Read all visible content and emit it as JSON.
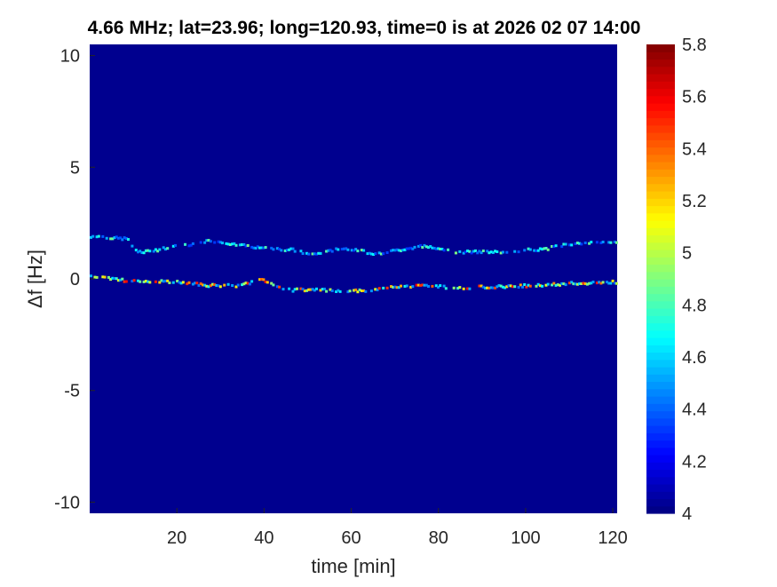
{
  "chart_data": {
    "type": "heatmap",
    "title": "4.66 MHz;  lat=23.96; long=120.93, time=0 is at 2026 02 07 14:00",
    "xlabel": "time [min]",
    "ylabel": "Δf [Hz]",
    "xlim": [
      0,
      121
    ],
    "ylim": [
      -10.5,
      10.5
    ],
    "xticks": [
      "20",
      "40",
      "60",
      "80",
      "100",
      "120"
    ],
    "yticks": [
      "10",
      "5",
      "0",
      "-5",
      "-10"
    ],
    "colorbar": {
      "colormap": "jet",
      "clim": [
        4,
        5.8
      ],
      "ticks": [
        "4",
        "4.2",
        "4.4",
        "4.6",
        "4.8",
        "5",
        "5.2",
        "5.4",
        "5.6",
        "5.8"
      ]
    },
    "background_value": 4,
    "background_color": "#00008f",
    "traces": [
      {
        "level_range": [
          4.3,
          4.9
        ],
        "points": [
          [
            0,
            1.9
          ],
          [
            8,
            1.8
          ],
          [
            11,
            1.2
          ],
          [
            22,
            1.5
          ],
          [
            27,
            1.7
          ],
          [
            34,
            1.5
          ],
          [
            40,
            1.4
          ],
          [
            46,
            1.3
          ],
          [
            50,
            1.1
          ],
          [
            59,
            1.35
          ],
          [
            65,
            1.15
          ],
          [
            77,
            1.45
          ],
          [
            85,
            1.2
          ],
          [
            93,
            1.2
          ],
          [
            102,
            1.3
          ],
          [
            112,
            1.6
          ],
          [
            121,
            1.6
          ]
        ]
      },
      {
        "level_range": [
          4.4,
          5.6
        ],
        "points": [
          [
            0,
            0.1
          ],
          [
            10,
            -0.1
          ],
          [
            20,
            -0.15
          ],
          [
            28,
            -0.3
          ],
          [
            34,
            -0.3
          ],
          [
            39,
            -0.05
          ],
          [
            45,
            -0.5
          ],
          [
            53,
            -0.5
          ],
          [
            61,
            -0.55
          ],
          [
            69,
            -0.4
          ],
          [
            75,
            -0.3
          ],
          [
            85,
            -0.4
          ],
          [
            93,
            -0.35
          ],
          [
            102,
            -0.3
          ],
          [
            112,
            -0.2
          ],
          [
            121,
            -0.15
          ]
        ]
      }
    ]
  }
}
